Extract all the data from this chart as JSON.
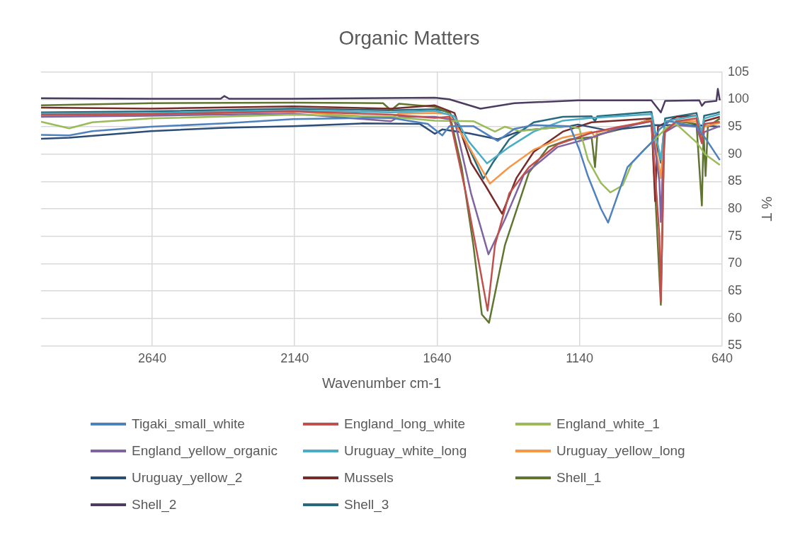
{
  "chart_data": {
    "type": "line",
    "title": "Organic Matters",
    "xlabel": "Wavenumber cm-1",
    "ylabel": "% T",
    "xlim": [
      3030,
      640
    ],
    "xticks": [
      2640,
      2140,
      1640,
      1140,
      640
    ],
    "ylim": [
      55,
      105
    ],
    "yticks": [
      55,
      60,
      65,
      70,
      75,
      80,
      85,
      90,
      95,
      100,
      105
    ],
    "grid": true,
    "legend": "bottom",
    "marker": "none",
    "line_style": "solid",
    "series": [
      {
        "name": "Tigaki_small_white",
        "color": "#4f81bd",
        "x": [
          3030,
          2931,
          2850,
          2645,
          2387,
          2146,
          1900,
          1802,
          1673,
          1622,
          1597,
          1513,
          1427,
          1369,
          1301,
          1174,
          1141,
          1111,
          1065,
          1040,
          972,
          913,
          888,
          860,
          825,
          730,
          700,
          648
        ],
        "values": [
          93.5,
          93.4,
          94.2,
          95,
          95.6,
          96.4,
          96.6,
          96.6,
          95.5,
          93.4,
          95.1,
          95.1,
          92.4,
          94.6,
          95.3,
          95.1,
          90.8,
          86,
          80,
          77.5,
          87.6,
          90.8,
          92.1,
          94.5,
          96,
          95,
          93,
          88.9
        ]
      },
      {
        "name": "England_long_white",
        "color": "#c0504d",
        "x": [
          3030,
          2645,
          2146,
          1802,
          1648,
          1597,
          1539,
          1488,
          1463,
          1437,
          1387,
          1318,
          1217,
          1098,
          1000,
          888,
          860,
          855,
          850,
          843,
          800,
          730,
          711,
          703,
          648
        ],
        "values": [
          97.2,
          97.3,
          97.8,
          97.2,
          96.6,
          96.8,
          82.8,
          68.6,
          61.4,
          73.4,
          82.8,
          87.6,
          91.8,
          93.9,
          95,
          96,
          75,
          63,
          75,
          94,
          96,
          96.5,
          92,
          95.5,
          95.9
        ]
      },
      {
        "name": "England_white_1",
        "color": "#9bbb59",
        "x": [
          3030,
          2931,
          2850,
          2645,
          2146,
          1802,
          1648,
          1513,
          1437,
          1402,
          1352,
          1184,
          1141,
          1111,
          1065,
          1032,
          989,
          956,
          913,
          888,
          830,
          799,
          729,
          700,
          648
        ],
        "values": [
          95.9,
          94.7,
          95.8,
          96.5,
          97.2,
          96.8,
          96.1,
          96,
          94.1,
          95,
          94.2,
          95.1,
          94.7,
          89,
          84.7,
          83,
          84.3,
          88.4,
          90.8,
          92.1,
          95,
          95.4,
          92.1,
          90,
          88
        ]
      },
      {
        "name": "England_yellow_organic",
        "color": "#8064a2",
        "x": [
          3030,
          2645,
          2146,
          1802,
          1774,
          1648,
          1579,
          1521,
          1460,
          1402,
          1336,
          1217,
          1098,
          1000,
          888,
          860,
          855,
          850,
          840,
          799,
          730,
          711,
          703,
          648
        ],
        "values": [
          96.8,
          97,
          97.4,
          96,
          96.8,
          96.8,
          96.2,
          82.8,
          71.7,
          78.1,
          86.2,
          91.3,
          93,
          94.8,
          96,
          85,
          77.6,
          85,
          94,
          95.3,
          95,
          92,
          94,
          95.1
        ]
      },
      {
        "name": "Uruguay_white_long",
        "color": "#4bacc6",
        "x": [
          3030,
          2645,
          2146,
          1802,
          1648,
          1579,
          1529,
          1465,
          1387,
          1301,
          1199,
          1098,
          888,
          855,
          840,
          730,
          711,
          703,
          648
        ],
        "values": [
          97.4,
          97.5,
          98,
          97.6,
          97.9,
          96.9,
          92.3,
          88.3,
          91.3,
          94.1,
          96.1,
          96.6,
          97.3,
          89,
          96,
          97,
          94,
          96.5,
          97.3
        ]
      },
      {
        "name": "Uruguay_yellow_long",
        "color": "#f79646",
        "x": [
          3030,
          2645,
          2146,
          1802,
          1774,
          1648,
          1597,
          1539,
          1455,
          1387,
          1301,
          1199,
          1098,
          1086,
          1078,
          888,
          855,
          845,
          799,
          730,
          711,
          703,
          648
        ],
        "values": [
          96.9,
          97.2,
          97.8,
          96.5,
          97.4,
          97.5,
          97.3,
          92.3,
          84.6,
          87.6,
          90.8,
          93,
          94.1,
          93,
          94,
          96.2,
          85.6,
          94,
          96,
          96,
          92.5,
          95,
          95.7
        ]
      },
      {
        "name": "Uruguay_yellow_2",
        "color": "#2c4d75",
        "x": [
          3030,
          2931,
          2645,
          2387,
          2146,
          1900,
          1700,
          1648,
          1622,
          1529,
          1427,
          1344,
          1174,
          1146,
          1040,
          875,
          730,
          648
        ],
        "values": [
          92.8,
          93,
          94.2,
          94.8,
          95.1,
          95.6,
          95.5,
          93.7,
          94.5,
          93.8,
          92.7,
          94.3,
          95.1,
          95.4,
          94.3,
          95.3,
          95.3,
          95
        ]
      },
      {
        "name": "Mussels",
        "color": "#772c2a",
        "x": [
          3030,
          2645,
          2146,
          1802,
          1648,
          1579,
          1521,
          1470,
          1412,
          1362,
          1301,
          1199,
          1098,
          888,
          875,
          865,
          800,
          730,
          711,
          703,
          648
        ],
        "values": [
          98.5,
          98.3,
          98.7,
          98.3,
          98.9,
          97.5,
          88.4,
          84.2,
          79.1,
          85.6,
          90.4,
          94.1,
          95.8,
          96.5,
          81.4,
          95,
          96.8,
          97,
          92.5,
          96,
          96.8
        ]
      },
      {
        "name": "Shell_1",
        "color": "#5f7530",
        "x": [
          3030,
          2645,
          2146,
          1830,
          1802,
          1774,
          1648,
          1597,
          1554,
          1513,
          1483,
          1458,
          1402,
          1318,
          1250,
          1174,
          1098,
          1086,
          1078,
          1000,
          888,
          855,
          843,
          800,
          730,
          711,
          705,
          698,
          690,
          648
        ],
        "values": [
          98.9,
          99.3,
          99.4,
          99.3,
          98,
          99.2,
          98.6,
          97.5,
          87.6,
          73.4,
          60.7,
          59.2,
          73.4,
          86.6,
          91.3,
          92.7,
          93.1,
          87.6,
          93.5,
          94.5,
          96.4,
          62.5,
          94,
          96,
          95.5,
          80.6,
          94,
          86,
          95,
          96.5
        ]
      },
      {
        "name": "Shell_2",
        "color": "#4d3b62",
        "x": [
          3030,
          2645,
          2400,
          2387,
          2370,
          2146,
          1648,
          1597,
          1488,
          1369,
          1146,
          888,
          855,
          840,
          720,
          711,
          700,
          660,
          655,
          648
        ],
        "values": [
          100.2,
          100.1,
          100.1,
          100.6,
          100.1,
          100.1,
          100.3,
          100,
          98.3,
          99.3,
          99.8,
          99.8,
          97.6,
          99.7,
          99.8,
          98.8,
          99.5,
          99.7,
          101.9,
          99.8
        ]
      },
      {
        "name": "Shell_3",
        "color": "#276a7c",
        "x": [
          3030,
          2645,
          2146,
          1802,
          1648,
          1597,
          1539,
          1478,
          1445,
          1387,
          1301,
          1199,
          1098,
          1086,
          1078,
          888,
          855,
          840,
          730,
          711,
          703,
          660,
          648
        ],
        "values": [
          97.6,
          97.8,
          98.3,
          98,
          98.2,
          97.7,
          92.3,
          85.5,
          88.4,
          92.7,
          95.8,
          96.8,
          96.9,
          96,
          96.9,
          97.7,
          88.4,
          96.5,
          97.5,
          93.2,
          97,
          97.5,
          97.7
        ]
      }
    ]
  }
}
